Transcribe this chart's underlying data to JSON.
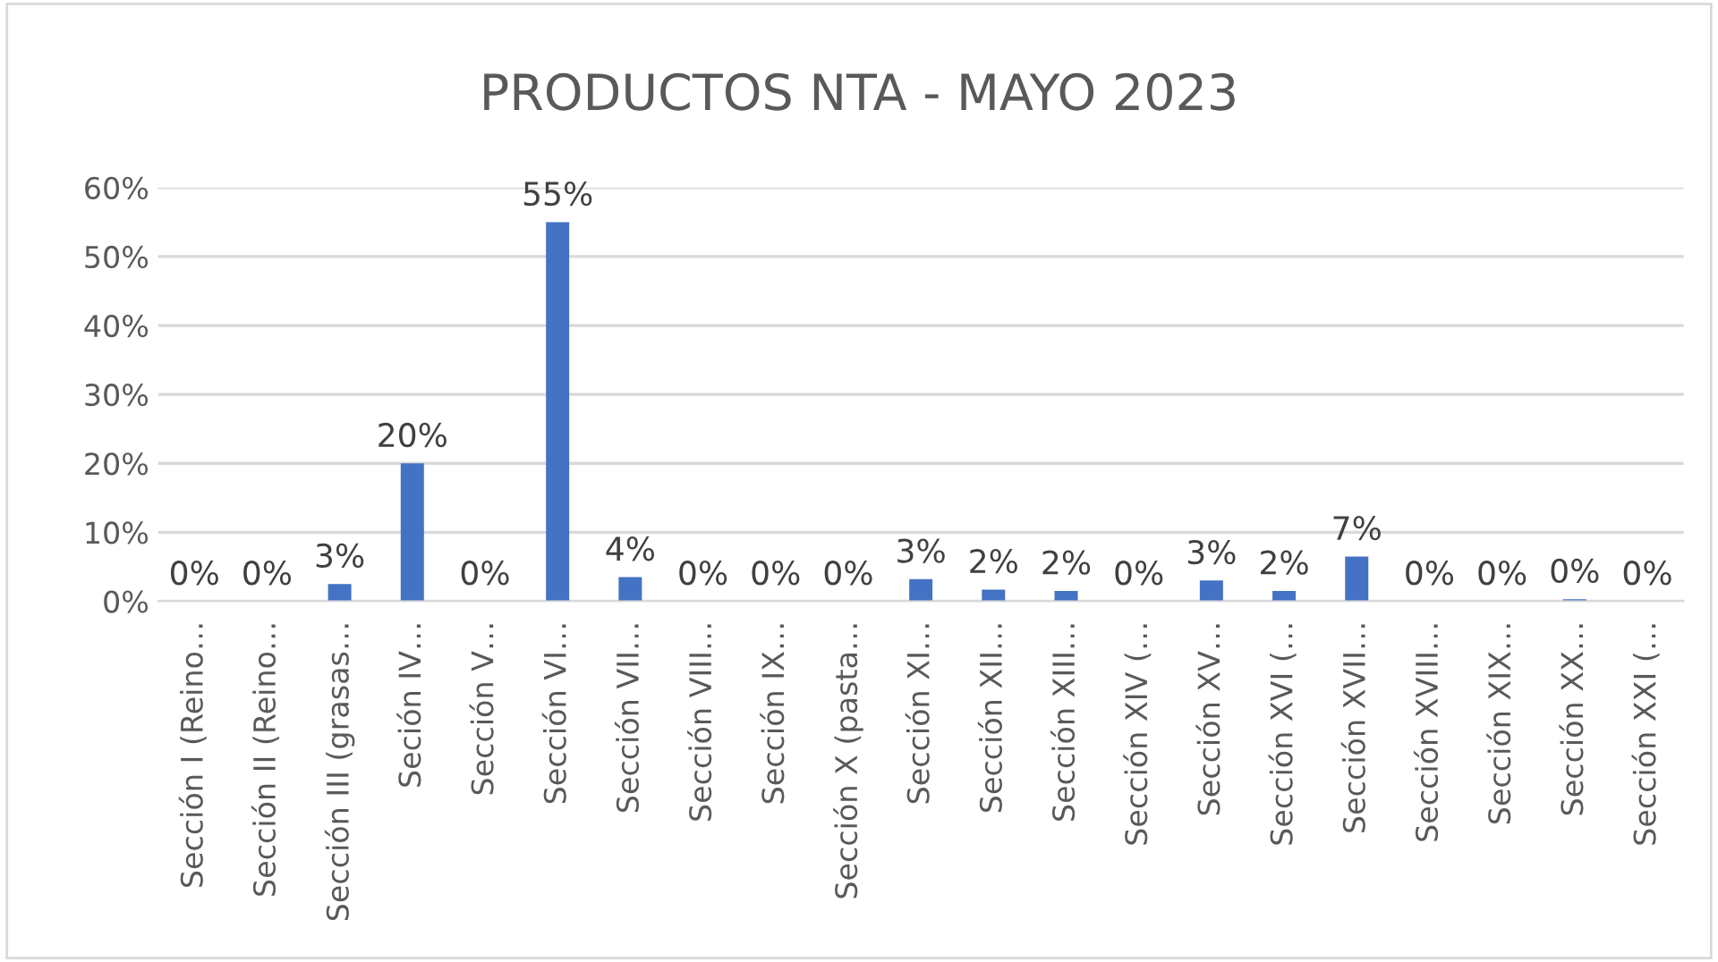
{
  "chart_data": {
    "type": "bar",
    "title": "PRODUCTOS NTA - MAYO 2023",
    "categories": [
      "Sección I (Reino…",
      "Sección II (Reino…",
      "Sección III (grasas…",
      "Seción IV…",
      "Sección V…",
      "Sección VI…",
      "Sección VII…",
      "Sección VIII…",
      "Sección IX…",
      "Sección X (pasta…",
      "Sección XI…",
      "Sección XII…",
      "Sección XIII…",
      "Sección XIV (…",
      "Sección XV…",
      "Sección XVI (…",
      "Sección XVII…",
      "Sección XVIII…",
      "Sección XIX…",
      "Sección XX…",
      "Sección XXI (…"
    ],
    "values": [
      0,
      0,
      2.5,
      20,
      0,
      55,
      3.5,
      0,
      0,
      0,
      3.2,
      1.7,
      1.5,
      0,
      3.0,
      1.5,
      6.5,
      0,
      0,
      0.3,
      0
    ],
    "value_labels": [
      "0%",
      "0%",
      "3%",
      "20%",
      "0%",
      "55%",
      "4%",
      "0%",
      "0%",
      "0%",
      "3%",
      "2%",
      "2%",
      "0%",
      "3%",
      "2%",
      "7%",
      "0%",
      "0%",
      "0%",
      "0%"
    ],
    "color": "#4472c4",
    "ylim": [
      0,
      60
    ],
    "yticks": [
      {
        "value": 0,
        "label": "0%"
      },
      {
        "value": 10,
        "label": "10%"
      },
      {
        "value": 20,
        "label": "20%"
      },
      {
        "value": 30,
        "label": "30%"
      },
      {
        "value": 40,
        "label": "40%"
      },
      {
        "value": 50,
        "label": "50%"
      },
      {
        "value": 60,
        "label": "60%"
      }
    ],
    "grid": "y"
  }
}
